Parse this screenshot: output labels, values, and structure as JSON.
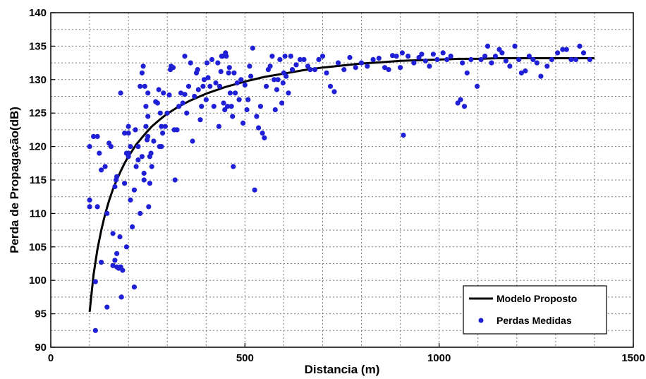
{
  "chart_data": {
    "type": "scatter",
    "title": "",
    "xlabel": "Distancia (m)",
    "ylabel": "Perda de Propagação(dB)",
    "xlim": [
      0,
      1500
    ],
    "ylim": [
      90,
      140
    ],
    "x_ticks": [
      0,
      500,
      1000,
      1500
    ],
    "y_ticks": [
      90,
      95,
      100,
      105,
      110,
      115,
      120,
      125,
      130,
      135,
      140
    ],
    "grid": true,
    "legend_position": "bottom-right",
    "colors": {
      "model": "#000000",
      "measured": "#1f1fd6"
    },
    "series": [
      {
        "name": "Modelo Proposto",
        "kind": "line",
        "x": [
          100,
          110,
          120,
          130,
          140,
          150,
          160,
          170,
          180,
          190,
          200,
          220,
          240,
          260,
          280,
          300,
          330,
          360,
          400,
          450,
          500,
          550,
          600,
          650,
          700,
          750,
          800,
          850,
          900,
          950,
          1000,
          1050,
          1100,
          1150,
          1200,
          1250,
          1300,
          1350,
          1400
        ],
        "y": [
          95.3,
          100.8,
          104.6,
          107.5,
          109.9,
          111.9,
          113.6,
          115.0,
          116.3,
          117.5,
          118.5,
          120.3,
          121.7,
          123.0,
          124.0,
          124.9,
          126.0,
          126.9,
          127.9,
          128.9,
          129.7,
          130.4,
          130.9,
          131.4,
          131.8,
          132.1,
          132.4,
          132.6,
          132.8,
          132.9,
          133.0,
          133.1,
          133.1,
          133.2,
          133.2,
          133.2,
          133.2,
          133.2,
          133.2
        ]
      },
      {
        "name": "Perdas Medidas",
        "kind": "scatter",
        "points": [
          [
            100,
            112
          ],
          [
            100,
            111
          ],
          [
            100,
            120
          ],
          [
            110,
            121.5
          ],
          [
            115,
            92.5
          ],
          [
            115,
            99.8
          ],
          [
            120,
            111
          ],
          [
            120,
            121.5
          ],
          [
            125,
            119
          ],
          [
            130,
            102.7
          ],
          [
            130,
            116.5
          ],
          [
            140,
            117
          ],
          [
            145,
            96
          ],
          [
            145,
            110
          ],
          [
            150,
            120.5
          ],
          [
            155,
            120
          ],
          [
            160,
            107
          ],
          [
            160,
            102.2
          ],
          [
            165,
            103
          ],
          [
            165,
            114
          ],
          [
            168,
            115
          ],
          [
            170,
            115.5
          ],
          [
            170,
            102
          ],
          [
            170,
            104
          ],
          [
            175,
            101.8
          ],
          [
            178,
            106.5
          ],
          [
            180,
            128
          ],
          [
            180,
            102
          ],
          [
            182,
            97.5
          ],
          [
            185,
            101.5
          ],
          [
            190,
            122
          ],
          [
            190,
            114.5
          ],
          [
            195,
            105
          ],
          [
            195,
            119
          ],
          [
            200,
            123
          ],
          [
            200,
            122
          ],
          [
            200,
            119
          ],
          [
            200,
            118.5
          ],
          [
            205,
            120
          ],
          [
            205,
            112
          ],
          [
            210,
            108
          ],
          [
            215,
            113.5
          ],
          [
            215,
            99
          ],
          [
            218,
            122.5
          ],
          [
            220,
            117
          ],
          [
            225,
            120
          ],
          [
            225,
            118
          ],
          [
            230,
            129
          ],
          [
            230,
            110
          ],
          [
            235,
            131
          ],
          [
            235,
            118.5
          ],
          [
            238,
            132
          ],
          [
            240,
            116
          ],
          [
            240,
            115
          ],
          [
            242,
            129
          ],
          [
            245,
            126
          ],
          [
            245,
            123
          ],
          [
            248,
            121
          ],
          [
            250,
            124.5
          ],
          [
            250,
            128
          ],
          [
            250,
            121.5
          ],
          [
            252,
            111
          ],
          [
            255,
            118.5
          ],
          [
            255,
            114.5
          ],
          [
            258,
            119
          ],
          [
            260,
            117
          ],
          [
            265,
            120.8
          ],
          [
            270,
            126.7
          ],
          [
            275,
            126.5
          ],
          [
            278,
            128.5
          ],
          [
            280,
            120
          ],
          [
            282,
            125
          ],
          [
            285,
            123
          ],
          [
            285,
            120
          ],
          [
            288,
            122
          ],
          [
            290,
            128
          ],
          [
            295,
            123
          ],
          [
            300,
            125
          ],
          [
            305,
            127.7
          ],
          [
            308,
            131.5
          ],
          [
            310,
            132
          ],
          [
            315,
            131.8
          ],
          [
            318,
            122.5
          ],
          [
            320,
            115
          ],
          [
            325,
            122.5
          ],
          [
            330,
            126
          ],
          [
            335,
            128
          ],
          [
            340,
            126.5
          ],
          [
            345,
            133.5
          ],
          [
            345,
            127.8
          ],
          [
            350,
            125
          ],
          [
            355,
            129
          ],
          [
            360,
            132.5
          ],
          [
            365,
            120.8
          ],
          [
            370,
            127.5
          ],
          [
            375,
            131
          ],
          [
            378,
            131.5
          ],
          [
            380,
            128.5
          ],
          [
            385,
            124
          ],
          [
            388,
            126
          ],
          [
            392,
            129
          ],
          [
            395,
            130
          ],
          [
            400,
            127
          ],
          [
            402,
            132.5
          ],
          [
            405,
            130.3
          ],
          [
            410,
            129
          ],
          [
            415,
            133
          ],
          [
            420,
            126
          ],
          [
            425,
            129.5
          ],
          [
            430,
            132.5
          ],
          [
            433,
            123
          ],
          [
            435,
            129
          ],
          [
            438,
            131.2
          ],
          [
            440,
            133.5
          ],
          [
            442,
            133.5
          ],
          [
            445,
            126.5
          ],
          [
            448,
            125.5
          ],
          [
            450,
            134
          ],
          [
            452,
            133.5
          ],
          [
            455,
            126
          ],
          [
            458,
            131
          ],
          [
            460,
            131.8
          ],
          [
            462,
            128
          ],
          [
            465,
            126
          ],
          [
            468,
            124.5
          ],
          [
            470,
            117
          ],
          [
            472,
            131
          ],
          [
            475,
            128
          ],
          [
            480,
            129.5
          ],
          [
            485,
            127
          ],
          [
            490,
            130
          ],
          [
            495,
            123.5
          ],
          [
            500,
            129.2
          ],
          [
            505,
            125.5
          ],
          [
            508,
            127
          ],
          [
            512,
            132
          ],
          [
            515,
            130.5
          ],
          [
            520,
            134.7
          ],
          [
            525,
            113.5
          ],
          [
            530,
            124.5
          ],
          [
            535,
            122.8
          ],
          [
            540,
            126
          ],
          [
            545,
            122
          ],
          [
            550,
            121.3
          ],
          [
            555,
            129
          ],
          [
            560,
            131.5
          ],
          [
            565,
            132
          ],
          [
            570,
            133.5
          ],
          [
            575,
            130
          ],
          [
            578,
            125.5
          ],
          [
            582,
            128.5
          ],
          [
            585,
            130
          ],
          [
            590,
            133
          ],
          [
            595,
            126.5
          ],
          [
            598,
            129.5
          ],
          [
            600,
            131
          ],
          [
            603,
            133.5
          ],
          [
            606,
            130.5
          ],
          [
            612,
            128
          ],
          [
            618,
            133.5
          ],
          [
            622,
            131.5
          ],
          [
            632,
            132.2
          ],
          [
            642,
            133
          ],
          [
            652,
            133
          ],
          [
            662,
            132
          ],
          [
            668,
            131.5
          ],
          [
            680,
            131.5
          ],
          [
            690,
            133
          ],
          [
            700,
            133.5
          ],
          [
            710,
            131
          ],
          [
            720,
            129
          ],
          [
            730,
            128.2
          ],
          [
            740,
            132.5
          ],
          [
            755,
            131.5
          ],
          [
            770,
            133.3
          ],
          [
            785,
            131.8
          ],
          [
            800,
            132.5
          ],
          [
            815,
            132
          ],
          [
            830,
            133
          ],
          [
            845,
            133.2
          ],
          [
            860,
            131.8
          ],
          [
            870,
            131.5
          ],
          [
            880,
            133.6
          ],
          [
            890,
            133.5
          ],
          [
            900,
            131.8
          ],
          [
            905,
            134
          ],
          [
            908,
            121.7
          ],
          [
            920,
            133.5
          ],
          [
            935,
            132.5
          ],
          [
            948,
            133.3
          ],
          [
            955,
            133.8
          ],
          [
            965,
            132.8
          ],
          [
            975,
            132
          ],
          [
            985,
            133.8
          ],
          [
            995,
            133
          ],
          [
            1010,
            134
          ],
          [
            1020,
            133
          ],
          [
            1030,
            133.5
          ],
          [
            1048,
            126.5
          ],
          [
            1055,
            127
          ],
          [
            1060,
            132.5
          ],
          [
            1065,
            126
          ],
          [
            1072,
            131
          ],
          [
            1082,
            133
          ],
          [
            1098,
            129
          ],
          [
            1108,
            133
          ],
          [
            1118,
            133.5
          ],
          [
            1125,
            135
          ],
          [
            1135,
            132.5
          ],
          [
            1145,
            133.5
          ],
          [
            1155,
            134.5
          ],
          [
            1162,
            134
          ],
          [
            1172,
            132.8
          ],
          [
            1182,
            132
          ],
          [
            1195,
            135
          ],
          [
            1205,
            133
          ],
          [
            1212,
            131
          ],
          [
            1222,
            131.3
          ],
          [
            1232,
            133.5
          ],
          [
            1242,
            133
          ],
          [
            1252,
            132.5
          ],
          [
            1262,
            130.5
          ],
          [
            1278,
            132
          ],
          [
            1290,
            133
          ],
          [
            1305,
            134
          ],
          [
            1318,
            134.5
          ],
          [
            1328,
            134.5
          ],
          [
            1340,
            133
          ],
          [
            1352,
            133
          ],
          [
            1362,
            135
          ],
          [
            1372,
            134
          ],
          [
            1388,
            133
          ]
        ]
      }
    ]
  }
}
